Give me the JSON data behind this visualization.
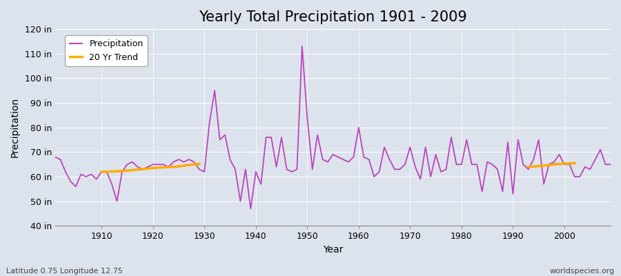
{
  "title": "Yearly Total Precipitation 1901 - 2009",
  "xlabel": "Year",
  "ylabel": "Precipitation",
  "ylim": [
    40,
    120
  ],
  "yticks": [
    40,
    50,
    60,
    70,
    80,
    90,
    100,
    110,
    120
  ],
  "ytick_labels": [
    "40 in",
    "50 in",
    "60 in",
    "70 in",
    "80 in",
    "90 in",
    "100 in",
    "110 in",
    "120 in"
  ],
  "xlim": [
    1901,
    2009
  ],
  "xticks": [
    1910,
    1920,
    1930,
    1940,
    1950,
    1960,
    1970,
    1980,
    1990,
    2000
  ],
  "background_color": "#dde3ec",
  "plot_bg_color": "#dde3ec",
  "grid_color": "#ffffff",
  "precip_color": "#bb44bb",
  "trend_color": "#ffaa00",
  "precip_linewidth": 1.3,
  "trend_linewidth": 2.5,
  "title_fontsize": 15,
  "axis_fontsize": 10,
  "tick_fontsize": 9,
  "bottom_left_text": "Latitude 0.75 Longitude 12.75",
  "bottom_right_text": "worldspecies.org",
  "years": [
    1901,
    1902,
    1903,
    1904,
    1905,
    1906,
    1907,
    1908,
    1909,
    1910,
    1911,
    1912,
    1913,
    1914,
    1915,
    1916,
    1917,
    1918,
    1919,
    1920,
    1921,
    1922,
    1923,
    1924,
    1925,
    1926,
    1927,
    1928,
    1929,
    1930,
    1931,
    1932,
    1933,
    1934,
    1935,
    1936,
    1937,
    1938,
    1939,
    1940,
    1941,
    1942,
    1943,
    1944,
    1945,
    1946,
    1947,
    1948,
    1949,
    1950,
    1951,
    1952,
    1953,
    1954,
    1955,
    1956,
    1957,
    1958,
    1959,
    1960,
    1961,
    1962,
    1963,
    1964,
    1965,
    1966,
    1967,
    1968,
    1969,
    1970,
    1971,
    1972,
    1973,
    1974,
    1975,
    1976,
    1977,
    1978,
    1979,
    1980,
    1981,
    1982,
    1983,
    1984,
    1985,
    1986,
    1987,
    1988,
    1989,
    1990,
    1991,
    1992,
    1993,
    1994,
    1995,
    1996,
    1997,
    1998,
    1999,
    2000,
    2001,
    2002,
    2003,
    2004,
    2005,
    2006,
    2007,
    2008,
    2009
  ],
  "precip": [
    68,
    67,
    62,
    58,
    56,
    61,
    60,
    61,
    59,
    62,
    62,
    57,
    50,
    62,
    65,
    66,
    64,
    63,
    64,
    65,
    65,
    65,
    64,
    66,
    67,
    66,
    67,
    66,
    63,
    62,
    82,
    95,
    75,
    77,
    67,
    63,
    50,
    63,
    47,
    62,
    57,
    76,
    76,
    64,
    76,
    63,
    62,
    63,
    113,
    84,
    63,
    77,
    67,
    66,
    69,
    68,
    67,
    66,
    68,
    80,
    68,
    67,
    60,
    62,
    72,
    67,
    63,
    63,
    65,
    72,
    64,
    59,
    72,
    60,
    69,
    62,
    63,
    76,
    65,
    65,
    75,
    65,
    65,
    54,
    66,
    65,
    63,
    54,
    74,
    53,
    75,
    65,
    63,
    67,
    75,
    57,
    65,
    66,
    69,
    65,
    65,
    60,
    60,
    64,
    63,
    67,
    71,
    65,
    65
  ],
  "trend_segment1_years": [
    1910,
    1911,
    1912,
    1913,
    1914,
    1915,
    1916,
    1917,
    1918,
    1919,
    1920,
    1921,
    1922,
    1923,
    1924,
    1925,
    1926,
    1927,
    1928,
    1929
  ],
  "trend_segment1_values": [
    62.0,
    62.0,
    62.1,
    62.2,
    62.3,
    62.5,
    62.7,
    62.9,
    63.1,
    63.3,
    63.5,
    63.7,
    63.8,
    63.9,
    64.0,
    64.2,
    64.5,
    64.8,
    65.0,
    65.2
  ],
  "trend_segment2_years": [
    1993,
    1994,
    1995,
    1996,
    1997,
    1998,
    1999,
    2000,
    2001,
    2002
  ],
  "trend_segment2_values": [
    64.0,
    64.1,
    64.3,
    64.5,
    64.7,
    65.0,
    65.2,
    65.3,
    65.4,
    65.5
  ]
}
